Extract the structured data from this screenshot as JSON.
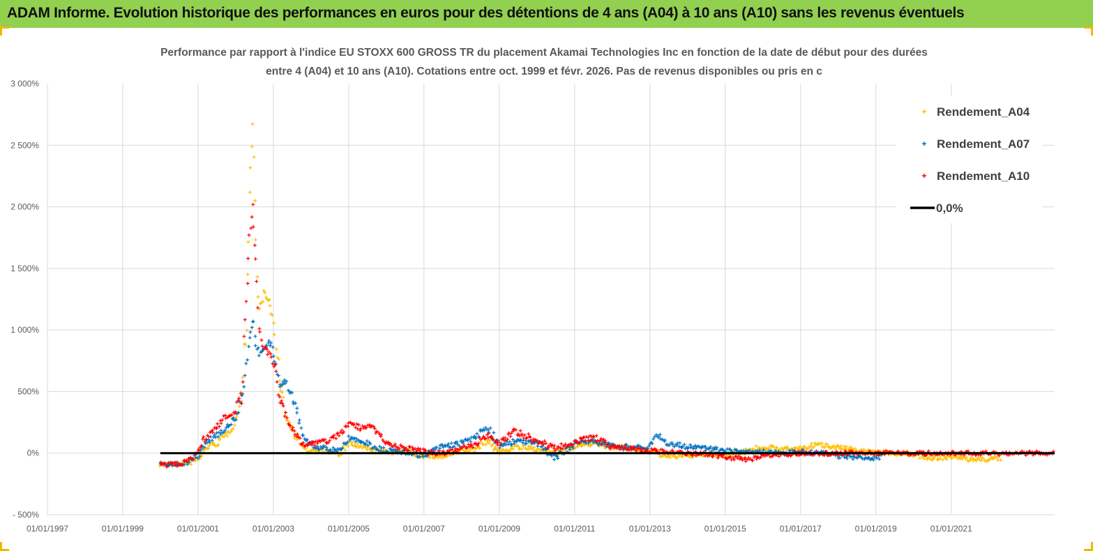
{
  "header": {
    "title": "ADAM Informe. Evolution historique des performances en euros pour des détentions de 4 ans (A04) à 10 ans (A10) sans les revenus éventuels"
  },
  "chart_data": {
    "type": "scatter",
    "title_lines": [
      "Performance par rapport à l'indice EU STOXX 600 GROSS TR  du placement  Akamai Technologies Inc en fonction de la date de début pour des durées",
      "entre 4 (A04) et 10 ans (A10).  Cotations entre oct. 1999 et févr. 2026. Pas de revenus disponibles ou pris en c"
    ],
    "xlabel": "",
    "ylabel": "",
    "x_range": [
      "1997-01-01",
      "2023-10-01"
    ],
    "ylim": [
      -500,
      3000
    ],
    "x_ticks": [
      {
        "date": "1997-01-01",
        "label": "01/01/1997"
      },
      {
        "date": "1999-01-01",
        "label": "01/01/1999"
      },
      {
        "date": "2001-01-01",
        "label": "01/01/2001"
      },
      {
        "date": "2003-01-01",
        "label": "01/01/2003"
      },
      {
        "date": "2005-01-01",
        "label": "01/01/2005"
      },
      {
        "date": "2007-01-01",
        "label": "01/01/2007"
      },
      {
        "date": "2009-01-01",
        "label": "01/01/2009"
      },
      {
        "date": "2011-01-01",
        "label": "01/01/2011"
      },
      {
        "date": "2013-01-01",
        "label": "01/01/2013"
      },
      {
        "date": "2015-01-01",
        "label": "01/01/2015"
      },
      {
        "date": "2017-01-01",
        "label": "01/01/2017"
      },
      {
        "date": "2019-01-01",
        "label": "01/01/2019"
      },
      {
        "date": "2021-01-01",
        "label": "01/01/2021"
      }
    ],
    "y_ticks": [
      {
        "value": -500,
        "label": "- 500%"
      },
      {
        "value": 0,
        "label": "0%"
      },
      {
        "value": 500,
        "label": "500%"
      },
      {
        "value": 1000,
        "label": "1 000%"
      },
      {
        "value": 1500,
        "label": "1 500%"
      },
      {
        "value": 2000,
        "label": "2 000%"
      },
      {
        "value": 2500,
        "label": "2 500%"
      },
      {
        "value": 3000,
        "label": "3 000%"
      }
    ],
    "grid": true,
    "legend_position": "top-right",
    "series": [
      {
        "name": "Rendement_A04",
        "color": "#ffc000",
        "marker": "plus",
        "points": [
          [
            "2000-01-01",
            -90
          ],
          [
            "2000-04-01",
            -95
          ],
          [
            "2000-07-01",
            -90
          ],
          [
            "2000-10-01",
            -80
          ],
          [
            "2001-01-01",
            -50
          ],
          [
            "2001-04-01",
            50
          ],
          [
            "2001-07-01",
            80
          ],
          [
            "2001-10-01",
            150
          ],
          [
            "2002-01-01",
            250
          ],
          [
            "2002-03-01",
            500
          ],
          [
            "2002-04-15",
            1100
          ],
          [
            "2002-05-15",
            2100
          ],
          [
            "2002-06-15",
            2700
          ],
          [
            "2002-07-15",
            1700
          ],
          [
            "2002-08-15",
            1150
          ],
          [
            "2002-10-01",
            1300
          ],
          [
            "2002-12-01",
            1200
          ],
          [
            "2003-01-15",
            1000
          ],
          [
            "2003-03-01",
            600
          ],
          [
            "2003-05-01",
            300
          ],
          [
            "2003-08-01",
            150
          ],
          [
            "2003-11-01",
            20
          ],
          [
            "2004-03-01",
            30
          ],
          [
            "2004-07-01",
            10
          ],
          [
            "2004-10-01",
            -10
          ],
          [
            "2005-01-01",
            80
          ],
          [
            "2005-05-01",
            50
          ],
          [
            "2005-09-01",
            20
          ],
          [
            "2006-01-01",
            10
          ],
          [
            "2006-07-01",
            10
          ],
          [
            "2007-01-01",
            -20
          ],
          [
            "2007-07-01",
            -30
          ],
          [
            "2008-01-01",
            20
          ],
          [
            "2008-05-01",
            30
          ],
          [
            "2008-09-01",
            100
          ],
          [
            "2009-01-01",
            10
          ],
          [
            "2009-06-01",
            50
          ],
          [
            "2010-01-01",
            30
          ],
          [
            "2010-07-01",
            -10
          ],
          [
            "2011-01-01",
            60
          ],
          [
            "2011-07-01",
            80
          ],
          [
            "2012-01-01",
            50
          ],
          [
            "2012-07-01",
            40
          ],
          [
            "2013-01-01",
            20
          ],
          [
            "2013-07-01",
            -30
          ],
          [
            "2014-01-01",
            -20
          ],
          [
            "2014-07-01",
            -10
          ],
          [
            "2015-01-01",
            -10
          ],
          [
            "2015-07-01",
            10
          ],
          [
            "2016-01-01",
            50
          ],
          [
            "2016-07-01",
            30
          ],
          [
            "2017-01-01",
            40
          ],
          [
            "2017-07-01",
            70
          ],
          [
            "2018-01-01",
            50
          ],
          [
            "2018-07-01",
            20
          ],
          [
            "2019-01-01",
            10
          ],
          [
            "2019-07-01",
            0
          ],
          [
            "2020-01-01",
            -10
          ],
          [
            "2020-07-01",
            -40
          ],
          [
            "2021-01-01",
            -30
          ],
          [
            "2021-07-01",
            -50
          ],
          [
            "2022-01-01",
            -50
          ],
          [
            "2022-05-01",
            -40
          ]
        ]
      },
      {
        "name": "Rendement_A07",
        "color": "#0070c0",
        "marker": "plus",
        "points": [
          [
            "2000-01-01",
            -90
          ],
          [
            "2000-04-01",
            -95
          ],
          [
            "2000-07-01",
            -85
          ],
          [
            "2000-10-01",
            -70
          ],
          [
            "2001-01-01",
            -20
          ],
          [
            "2001-04-01",
            100
          ],
          [
            "2001-07-01",
            150
          ],
          [
            "2001-10-01",
            200
          ],
          [
            "2002-01-01",
            300
          ],
          [
            "2002-03-01",
            450
          ],
          [
            "2002-04-15",
            700
          ],
          [
            "2002-05-15",
            950
          ],
          [
            "2002-06-15",
            1100
          ],
          [
            "2002-07-15",
            900
          ],
          [
            "2002-08-15",
            800
          ],
          [
            "2002-10-01",
            850
          ],
          [
            "2002-12-01",
            900
          ],
          [
            "2003-01-15",
            750
          ],
          [
            "2003-03-01",
            550
          ],
          [
            "2003-05-01",
            600
          ],
          [
            "2003-08-01",
            400
          ],
          [
            "2003-11-01",
            100
          ],
          [
            "2004-03-01",
            50
          ],
          [
            "2004-07-01",
            30
          ],
          [
            "2004-10-01",
            20
          ],
          [
            "2005-01-01",
            120
          ],
          [
            "2005-05-01",
            100
          ],
          [
            "2005-09-01",
            50
          ],
          [
            "2006-01-01",
            20
          ],
          [
            "2006-07-01",
            10
          ],
          [
            "2007-01-01",
            -20
          ],
          [
            "2007-07-01",
            50
          ],
          [
            "2008-01-01",
            80
          ],
          [
            "2008-05-01",
            120
          ],
          [
            "2008-09-01",
            220
          ],
          [
            "2009-01-01",
            60
          ],
          [
            "2009-06-01",
            100
          ],
          [
            "2010-01-01",
            80
          ],
          [
            "2010-07-01",
            -40
          ],
          [
            "2011-01-01",
            80
          ],
          [
            "2011-07-01",
            100
          ],
          [
            "2012-01-01",
            60
          ],
          [
            "2012-07-01",
            50
          ],
          [
            "2013-01-01",
            50
          ],
          [
            "2013-03-01",
            150
          ],
          [
            "2013-07-01",
            80
          ],
          [
            "2014-01-01",
            50
          ],
          [
            "2014-07-01",
            40
          ],
          [
            "2015-01-01",
            20
          ],
          [
            "2015-07-01",
            10
          ],
          [
            "2016-01-01",
            10
          ],
          [
            "2016-07-01",
            0
          ],
          [
            "2017-01-01",
            10
          ],
          [
            "2017-07-01",
            0
          ],
          [
            "2018-01-01",
            -20
          ],
          [
            "2018-07-01",
            -40
          ],
          [
            "2019-01-01",
            -40
          ],
          [
            "2019-03-01",
            -30
          ]
        ]
      },
      {
        "name": "Rendement_A10",
        "color": "#ff0000",
        "marker": "plus",
        "points": [
          [
            "2000-01-01",
            -90
          ],
          [
            "2000-04-01",
            -95
          ],
          [
            "2000-07-01",
            -85
          ],
          [
            "2000-10-01",
            -60
          ],
          [
            "2001-01-01",
            20
          ],
          [
            "2001-04-01",
            150
          ],
          [
            "2001-07-01",
            200
          ],
          [
            "2001-10-01",
            300
          ],
          [
            "2002-01-01",
            350
          ],
          [
            "2002-03-01",
            500
          ],
          [
            "2002-04-15",
            1200
          ],
          [
            "2002-05-15",
            1800
          ],
          [
            "2002-06-15",
            2000
          ],
          [
            "2002-07-15",
            1500
          ],
          [
            "2002-08-15",
            1000
          ],
          [
            "2002-10-01",
            850
          ],
          [
            "2002-12-01",
            800
          ],
          [
            "2003-01-15",
            700
          ],
          [
            "2003-03-01",
            450
          ],
          [
            "2003-05-01",
            300
          ],
          [
            "2003-08-01",
            150
          ],
          [
            "2003-11-01",
            70
          ],
          [
            "2004-03-01",
            80
          ],
          [
            "2004-07-01",
            100
          ],
          [
            "2004-10-01",
            150
          ],
          [
            "2005-01-01",
            250
          ],
          [
            "2005-05-01",
            200
          ],
          [
            "2005-09-01",
            220
          ],
          [
            "2006-01-01",
            80
          ],
          [
            "2006-07-01",
            40
          ],
          [
            "2007-01-01",
            10
          ],
          [
            "2007-07-01",
            0
          ],
          [
            "2008-01-01",
            40
          ],
          [
            "2008-05-01",
            60
          ],
          [
            "2008-09-01",
            150
          ],
          [
            "2009-01-01",
            80
          ],
          [
            "2009-06-01",
            180
          ],
          [
            "2010-01-01",
            100
          ],
          [
            "2010-07-01",
            40
          ],
          [
            "2011-01-01",
            90
          ],
          [
            "2011-07-01",
            130
          ],
          [
            "2012-01-01",
            50
          ],
          [
            "2012-07-01",
            40
          ],
          [
            "2013-01-01",
            20
          ],
          [
            "2013-07-01",
            10
          ],
          [
            "2014-01-01",
            0
          ],
          [
            "2014-07-01",
            -10
          ],
          [
            "2015-01-01",
            -30
          ],
          [
            "2015-07-01",
            -50
          ],
          [
            "2016-01-01",
            -30
          ],
          [
            "2016-07-01",
            -10
          ],
          [
            "2017-01-01",
            0
          ],
          [
            "2017-07-01",
            0
          ],
          [
            "2018-01-01",
            0
          ],
          [
            "2018-07-01",
            0
          ],
          [
            "2019-01-01",
            0
          ],
          [
            "2019-07-01",
            0
          ],
          [
            "2020-01-01",
            0
          ],
          [
            "2020-07-01",
            0
          ],
          [
            "2021-01-01",
            0
          ],
          [
            "2021-07-01",
            0
          ],
          [
            "2022-01-01",
            0
          ],
          [
            "2022-07-01",
            0
          ],
          [
            "2023-01-01",
            0
          ],
          [
            "2023-07-01",
            0
          ],
          [
            "2023-10-01",
            0
          ]
        ]
      }
    ],
    "reference_line": {
      "name": "0,0%",
      "color": "#000000",
      "value": 0,
      "x_from": "2000-01-01",
      "x_to": "2023-10-01"
    }
  }
}
